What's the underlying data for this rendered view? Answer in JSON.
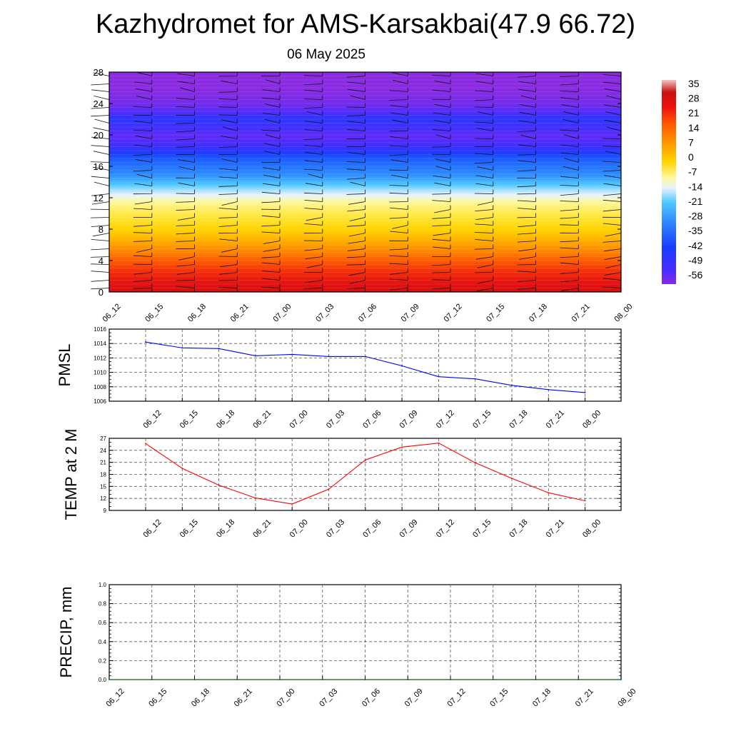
{
  "title": "Kazhydromet for AMS-Karsakbai(47.9 66.72)",
  "subtitle": "06 May 2025",
  "chart_data": [
    {
      "type": "heatmap",
      "name": "temperature-cross-section",
      "x_categories": [
        "06_12",
        "06_15",
        "06_18",
        "06_21",
        "07_00",
        "07_03",
        "07_06",
        "07_09",
        "07_12",
        "07_15",
        "07_18",
        "07_21",
        "08_00"
      ],
      "y_ticks": [
        0,
        4,
        8,
        12,
        16,
        20,
        24,
        28
      ],
      "ylim": [
        0,
        28
      ],
      "colorbar": {
        "labels": [
          "35",
          "28",
          "21",
          "14",
          "7",
          "0",
          "-7",
          "-14",
          "-21",
          "-28",
          "-35",
          "-42",
          "-49",
          "-56"
        ],
        "range": [
          -60,
          37
        ]
      },
      "levels": [
        0,
        1,
        2,
        3,
        4,
        5,
        6,
        7,
        8,
        9,
        10,
        11,
        12,
        13,
        14,
        15,
        16,
        17,
        18,
        19,
        20,
        21,
        22,
        23,
        24,
        25,
        26,
        27,
        28
      ],
      "level_temperatures": [
        27,
        24,
        21,
        17,
        13,
        9,
        6,
        3,
        0,
        -3,
        -6,
        -9,
        -13,
        -18,
        -24,
        -30,
        -36,
        -42,
        -50,
        -54,
        -56,
        -53,
        -50,
        -55,
        -58,
        -59,
        -60,
        -60,
        -60
      ],
      "wind_barbs": "on",
      "grid": false
    },
    {
      "type": "line",
      "name": "pmsl",
      "ylabel": "PMSL",
      "categories": [
        "06_12",
        "06_15",
        "06_18",
        "06_21",
        "07_00",
        "07_03",
        "07_06",
        "07_09",
        "07_12",
        "07_15",
        "07_18",
        "07_21",
        "08_00"
      ],
      "y_ticks": [
        1006,
        1008,
        1010,
        1012,
        1014,
        1016
      ],
      "ylim": [
        1006,
        1016
      ],
      "values": [
        1014.2,
        1013.4,
        1013.3,
        1012.3,
        1012.5,
        1012.2,
        1012.2,
        1010.9,
        1009.4,
        1009.1,
        1008.2,
        1007.6,
        1007.2
      ],
      "color": "#0000ff",
      "grid": true
    },
    {
      "type": "line",
      "name": "temp-2m",
      "ylabel": "TEMP at 2 M",
      "categories": [
        "06_12",
        "06_15",
        "06_18",
        "06_21",
        "07_00",
        "07_03",
        "07_06",
        "07_09",
        "07_12",
        "07_15",
        "07_18",
        "07_21",
        "08_00"
      ],
      "y_ticks": [
        9,
        12,
        15,
        18,
        21,
        24,
        27
      ],
      "ylim": [
        9,
        27
      ],
      "values": [
        25.7,
        19.5,
        15.3,
        12.1,
        10.6,
        14.3,
        21.6,
        24.8,
        25.8,
        20.9,
        17.0,
        13.4,
        11.4
      ],
      "color": "#ff0000",
      "grid": true
    },
    {
      "type": "line",
      "name": "precip",
      "ylabel": "PRECIP, mm",
      "categories": [
        "06_12",
        "06_15",
        "06_18",
        "06_21",
        "07_00",
        "07_03",
        "07_06",
        "07_09",
        "07_12",
        "07_15",
        "07_18",
        "07_21",
        "08_00"
      ],
      "y_ticks": [
        "0.0",
        "0.2",
        "0.4",
        "0.6",
        "0.8",
        "1.0"
      ],
      "ylim": [
        0,
        1
      ],
      "values": [
        0,
        0,
        0,
        0,
        0,
        0,
        0,
        0,
        0,
        0,
        0,
        0,
        0
      ],
      "color": "#006400",
      "grid": true
    }
  ]
}
